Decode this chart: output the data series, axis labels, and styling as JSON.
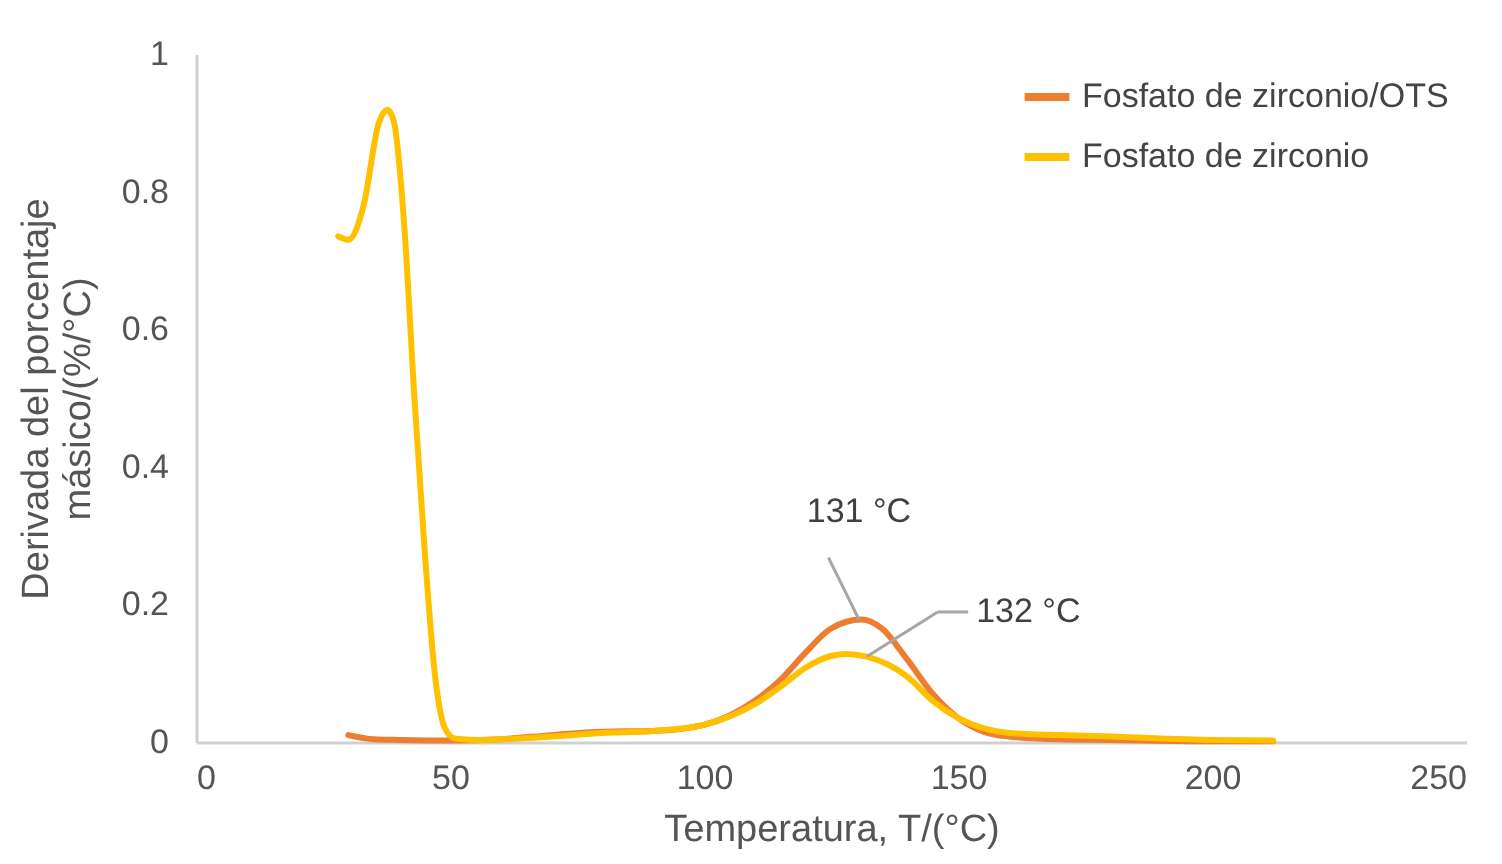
{
  "chart_data": {
    "type": "line",
    "xlabel": "Temperatura, T/(°C)",
    "ylabel": "Derivada del porcentaje másico/(%/°C)",
    "xlim": [
      0,
      250
    ],
    "xticks": [
      0,
      50,
      100,
      150,
      200,
      250
    ],
    "ylim": [
      0,
      1
    ],
    "yticks": [
      0,
      0.2,
      0.4,
      0.6,
      0.8,
      1
    ],
    "grid": false,
    "legend": "top right",
    "marker": "none",
    "line_style": "solid",
    "series": [
      {
        "name": "Fosfato de zirconio/OTS",
        "color": "#ed7d31",
        "x": [
          30,
          35,
          40,
          50,
          60,
          70,
          80,
          90,
          100,
          110,
          115,
          120,
          125,
          131,
          135,
          140,
          145,
          150,
          155,
          160,
          170,
          180,
          200,
          212
        ],
        "values": [
          0.01,
          0.004,
          0.003,
          0.002,
          0.004,
          0.01,
          0.015,
          0.016,
          0.025,
          0.06,
          0.09,
          0.13,
          0.165,
          0.178,
          0.165,
          0.12,
          0.07,
          0.035,
          0.015,
          0.008,
          0.004,
          0.003,
          0.001,
          0.001
        ]
      },
      {
        "name": "Fosfato de zirconio",
        "color": "#ffc000",
        "x": [
          28,
          30,
          33,
          36,
          37.7,
          39,
          41,
          43,
          45,
          47,
          49,
          51,
          55,
          60,
          70,
          80,
          90,
          100,
          110,
          115,
          120,
          125,
          128,
          132,
          140,
          145,
          150,
          155,
          160,
          170,
          180,
          190,
          200,
          212
        ],
        "values": [
          0.735,
          0.73,
          0.78,
          0.9,
          0.919,
          0.9,
          0.75,
          0.5,
          0.28,
          0.1,
          0.02,
          0.005,
          0.003,
          0.004,
          0.008,
          0.013,
          0.016,
          0.025,
          0.055,
          0.08,
          0.108,
          0.125,
          0.128,
          0.124,
          0.095,
          0.06,
          0.035,
          0.02,
          0.013,
          0.01,
          0.008,
          0.005,
          0.003,
          0.002
        ]
      }
    ],
    "annotations": [
      {
        "text": "131 °C",
        "x": 130.5,
        "y": 0.178
      },
      {
        "text": "132 °C",
        "x": 132,
        "y": 0.124
      }
    ]
  }
}
